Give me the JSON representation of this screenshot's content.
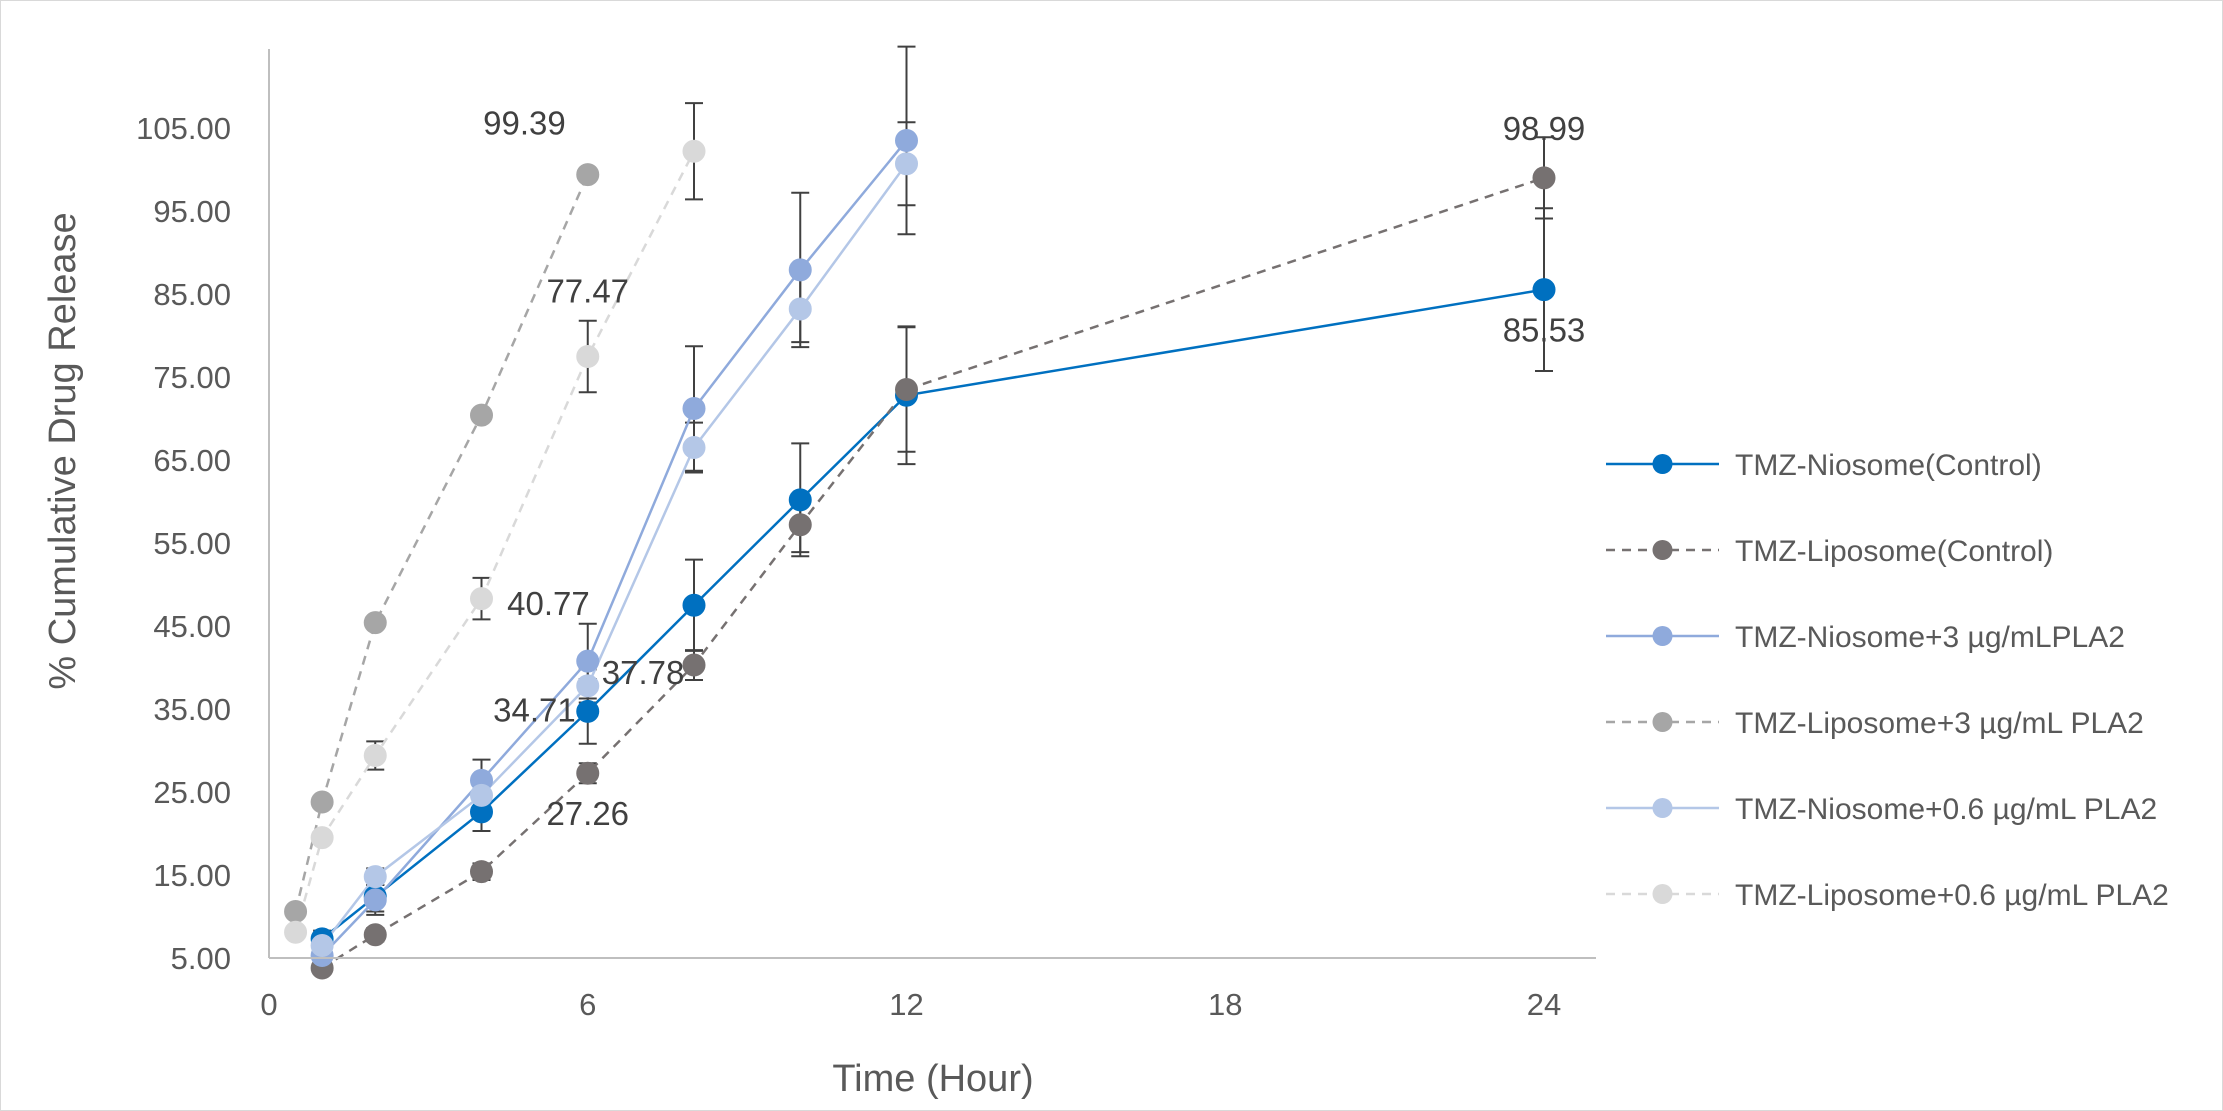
{
  "chart_data": {
    "type": "line",
    "title": "",
    "xlabel": "Time (Hour)",
    "ylabel": "% Cumulative Drug Release",
    "xlim": [
      0,
      25
    ],
    "ylim": [
      5,
      112
    ],
    "x_ticks": [
      "0",
      "6",
      "12",
      "18",
      "24"
    ],
    "y_ticks": [
      "5.00",
      "15.00",
      "25.00",
      "35.00",
      "45.00",
      "55.00",
      "65.00",
      "75.00",
      "85.00",
      "95.00",
      "105.00"
    ],
    "grid": false,
    "legend_position": "right",
    "series": [
      {
        "name": "TMZ-Niosome(Control)",
        "color": "#0070c0",
        "dash": "solid",
        "x": [
          1,
          2,
          4,
          6,
          8,
          10,
          12,
          24
        ],
        "y": [
          7.3,
          12.4,
          22.6,
          34.71,
          47.5,
          60.2,
          72.8,
          85.53
        ],
        "err": [
          1.0,
          1.8,
          2.3,
          3.9,
          5.5,
          6.8,
          8.3,
          9.8
        ]
      },
      {
        "name": "TMZ-Liposome(Control)",
        "color": "#767171",
        "dash": "dashed",
        "x": [
          1,
          2,
          4,
          6,
          8,
          10,
          12,
          24
        ],
        "y": [
          3.8,
          7.8,
          15.4,
          27.26,
          40.3,
          57.2,
          73.5,
          98.99
        ],
        "err": [
          0.5,
          0.8,
          1.0,
          1.2,
          1.8,
          3.3,
          7.5,
          4.9
        ]
      },
      {
        "name": "TMZ-Niosome+3 µg/mLPLA2",
        "color": "#8faadc",
        "dash": "solid",
        "x": [
          1,
          2,
          4,
          6,
          8,
          10,
          12
        ],
        "y": [
          5.3,
          12.0,
          26.4,
          40.77,
          71.2,
          87.9,
          103.5
        ],
        "err": [
          0.8,
          1.8,
          2.5,
          4.5,
          7.5,
          9.3,
          11.3
        ]
      },
      {
        "name": "TMZ-Liposome+3 µg/mL PLA2",
        "color": "#a6a6a6",
        "dash": "dashed",
        "x": [
          0.5,
          1,
          2,
          4,
          6
        ],
        "y": [
          10.6,
          23.8,
          45.4,
          70.4,
          99.39
        ],
        "err": [
          0,
          0,
          0,
          0,
          0
        ]
      },
      {
        "name": "TMZ-Niosome+0.6 µg/mL PLA2",
        "color": "#b4c7e7",
        "dash": "solid",
        "x": [
          1,
          2,
          4,
          6,
          8,
          10,
          12
        ],
        "y": [
          6.5,
          14.8,
          24.6,
          37.78,
          66.5,
          83.2,
          100.7
        ],
        "err": [
          0.5,
          1.0,
          1.5,
          2.0,
          3.0,
          4.0,
          5.0
        ]
      },
      {
        "name": "TMZ-Liposome+0.6 µg/mL PLA2",
        "color": "#d9d9d9",
        "dash": "dashed",
        "x": [
          0.5,
          1,
          2,
          4,
          6,
          8
        ],
        "y": [
          8.1,
          19.5,
          29.4,
          48.3,
          77.47,
          102.2
        ],
        "err": [
          0,
          0,
          1.7,
          2.5,
          4.3,
          5.8
        ]
      }
    ],
    "annotations": [
      {
        "text": "99.39",
        "x": 6,
        "y": 99.39,
        "placement": "above-left"
      },
      {
        "text": "77.47",
        "x": 6,
        "y": 77.47,
        "placement": "above"
      },
      {
        "text": "40.77",
        "x": 6,
        "y": 40.77,
        "placement": "above-left"
      },
      {
        "text": "34.71",
        "x": 6,
        "y": 34.71,
        "placement": "left"
      },
      {
        "text": "37.78",
        "x": 6,
        "y": 37.78,
        "placement": "right"
      },
      {
        "text": "27.26",
        "x": 6,
        "y": 27.26,
        "placement": "below"
      },
      {
        "text": "98.99",
        "x": 24,
        "y": 98.99,
        "placement": "above"
      },
      {
        "text": "85.53",
        "x": 24,
        "y": 85.53,
        "placement": "below"
      }
    ]
  }
}
